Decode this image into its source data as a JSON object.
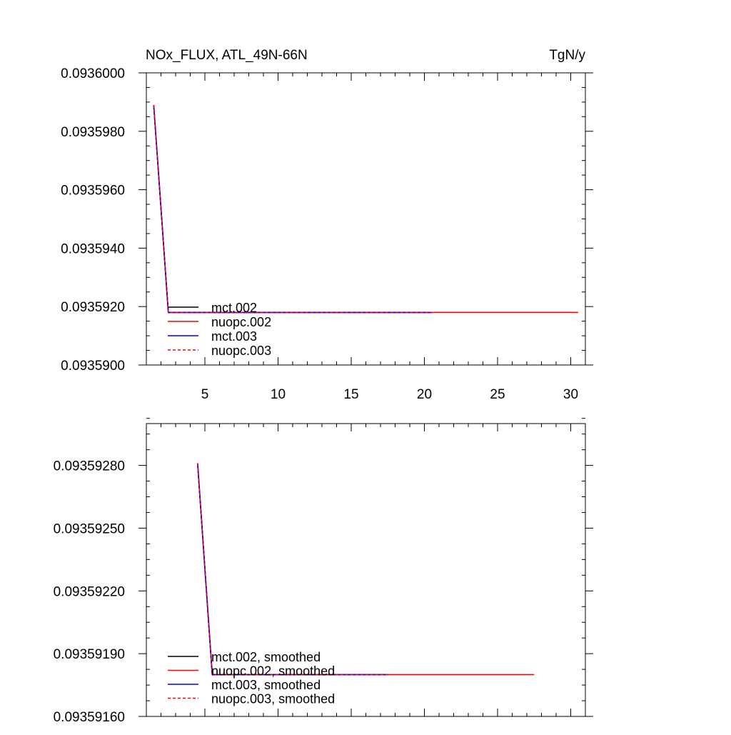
{
  "chart_data": [
    {
      "type": "line",
      "title_left": "NOx_FLUX, ATL_49N-66N",
      "title_right": "TgN/y",
      "xlabel": "",
      "ylabel": "",
      "xlim": [
        1,
        31
      ],
      "ylim": [
        0.09359,
        0.0936
      ],
      "x_ticks": [
        5,
        10,
        15,
        20,
        25,
        30
      ],
      "x_tick_labels": [
        "5",
        "10",
        "15",
        "20",
        "25",
        "30"
      ],
      "y_ticks": [
        0.09359,
        0.093592,
        0.093594,
        0.093596,
        0.093598,
        0.0936
      ],
      "y_tick_labels": [
        "0.0935900",
        "0.0935920",
        "0.0935940",
        "0.0935960",
        "0.0935980",
        "0.0936000"
      ],
      "legend_position": "lower-left",
      "series": [
        {
          "name": "mct.002",
          "color": "#000000",
          "dash": "solid",
          "x": [
            1.5,
            2.5,
            20.5
          ],
          "values": [
            0.0935989,
            0.0935918,
            0.0935918
          ]
        },
        {
          "name": "nuopc.002",
          "color": "#ff0000",
          "dash": "solid",
          "x": [
            1.5,
            2.5,
            30.5
          ],
          "values": [
            0.0935989,
            0.0935918,
            0.0935918
          ]
        },
        {
          "name": "mct.003",
          "color": "#0000ff",
          "dash": "solid",
          "x": [
            1.5,
            2.5,
            20.5
          ],
          "values": [
            0.0935989,
            0.0935918,
            0.0935918
          ]
        },
        {
          "name": "nuopc.003",
          "color": "#ff0000",
          "dash": "dashed",
          "x": [
            1.5,
            2.5,
            20.5
          ],
          "values": [
            0.0935989,
            0.0935918,
            0.0935918
          ]
        }
      ]
    },
    {
      "type": "line",
      "title_left": "",
      "title_right": "",
      "xlabel": "",
      "ylabel": "",
      "xlim": [
        1,
        31
      ],
      "ylim": [
        0.0935916,
        0.093593
      ],
      "x_ticks": [
        5,
        10,
        15,
        20,
        25,
        30
      ],
      "x_tick_labels": [],
      "y_ticks": [
        0.0935916,
        0.0935919,
        0.0935922,
        0.0935925,
        0.0935928
      ],
      "y_tick_labels": [
        "0.09359160",
        "0.09359190",
        "0.09359220",
        "0.09359250",
        "0.09359280"
      ],
      "legend_position": "lower-left",
      "series": [
        {
          "name": "mct.002, smoothed",
          "color": "#000000",
          "dash": "solid",
          "x": [
            4.5,
            5.5,
            17.5
          ],
          "values": [
            0.09359281,
            0.0935918,
            0.0935918
          ]
        },
        {
          "name": "nuopc.002, smoothed",
          "color": "#ff0000",
          "dash": "solid",
          "x": [
            4.5,
            5.5,
            27.5
          ],
          "values": [
            0.09359281,
            0.0935918,
            0.0935918
          ]
        },
        {
          "name": "mct.003, smoothed",
          "color": "#0000ff",
          "dash": "solid",
          "x": [
            4.5,
            5.5,
            17.5
          ],
          "values": [
            0.09359281,
            0.0935918,
            0.0935918
          ]
        },
        {
          "name": "nuopc.003, smoothed",
          "color": "#ff0000",
          "dash": "dashed",
          "x": [
            4.5,
            5.5,
            17.5
          ],
          "values": [
            0.09359281,
            0.0935918,
            0.0935918
          ]
        }
      ]
    }
  ]
}
